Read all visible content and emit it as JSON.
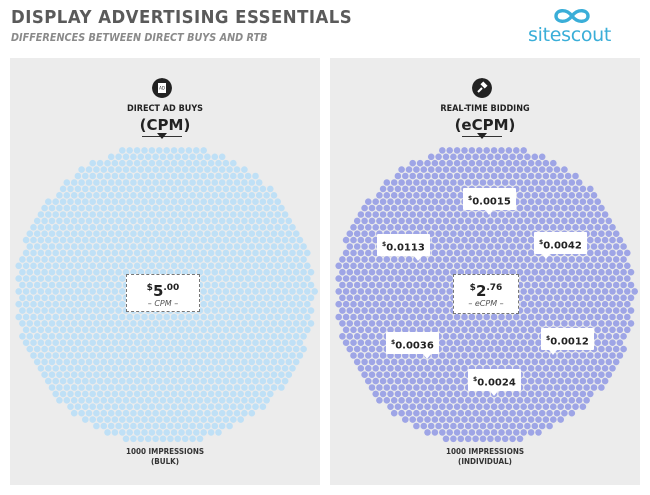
{
  "header": {
    "title": "DISPLAY ADVERTISING ESSENTIALS",
    "subtitle": "DIFFERENCES BETWEEN DIRECT BUYS AND RTB",
    "logo_text": "sitescout",
    "logo_color": "#3aaed8"
  },
  "left_panel": {
    "icon": "ad-page-icon",
    "icon_text": "AD",
    "heading": "DIRECT AD BUYS",
    "metric": "(CPM)",
    "price": {
      "currency": "$",
      "amount": "5",
      "cents": ".00",
      "label": "– CPM –"
    },
    "footer_line1": "1000 IMPRESSIONS",
    "footer_line2": "(BULK)",
    "dot_color": "#bfe0f6"
  },
  "right_panel": {
    "icon": "auction-gavel-icon",
    "heading": "REAL-TIME BIDDING",
    "metric": "(eCPM)",
    "price": {
      "currency": "$",
      "amount": "2",
      "cents": ".76",
      "label": "– eCPM –"
    },
    "bids": [
      {
        "currency": "$",
        "value": "0.0015"
      },
      {
        "currency": "$",
        "value": "0.0113"
      },
      {
        "currency": "$",
        "value": "0.0042"
      },
      {
        "currency": "$",
        "value": "0.0036"
      },
      {
        "currency": "$",
        "value": "0.0012"
      },
      {
        "currency": "$",
        "value": "0.0024"
      }
    ],
    "footer_line1": "1000 IMPRESSIONS",
    "footer_line2": "(INDIVIDUAL)",
    "dot_color": "#9ea5e6"
  }
}
